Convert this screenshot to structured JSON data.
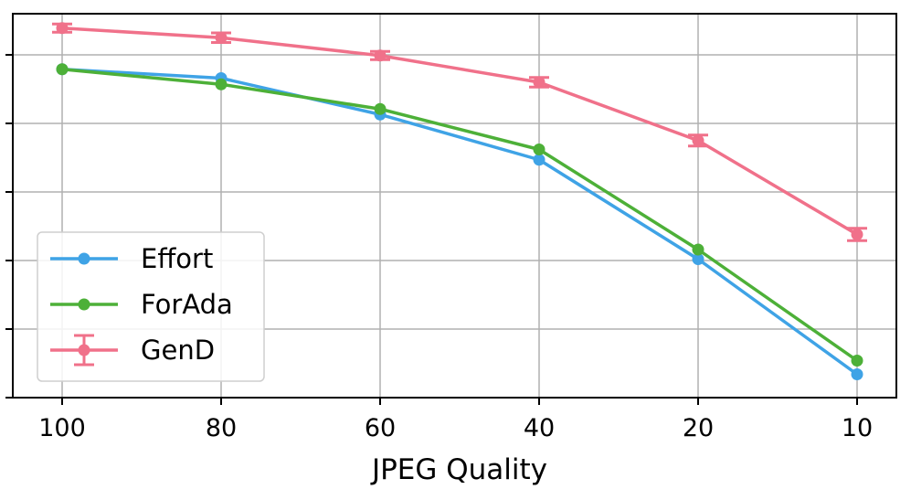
{
  "chart_data": {
    "type": "line",
    "title": "",
    "xlabel": "JPEG Quality",
    "ylabel": "",
    "categories": [
      "100",
      "80",
      "60",
      "40",
      "20",
      "10"
    ],
    "ylim": [
      0.5,
      1.06
    ],
    "yticks": [
      0.5,
      0.6,
      0.7,
      0.8,
      0.9,
      1.0
    ],
    "show_ytick_labels": false,
    "grid": true,
    "legend_position": "lower-left",
    "series": [
      {
        "name": "Effort",
        "color": "#3fa3e6",
        "marker": "circle",
        "errorbars": false,
        "values": [
          0.979,
          0.966,
          0.913,
          0.847,
          0.702,
          0.534
        ]
      },
      {
        "name": "ForAda",
        "color": "#4db038",
        "marker": "circle",
        "errorbars": false,
        "values": [
          0.979,
          0.957,
          0.921,
          0.862,
          0.716,
          0.554
        ]
      },
      {
        "name": "GenD",
        "color": "#f0718a",
        "marker": "circle",
        "errorbars": true,
        "values": [
          1.039,
          1.025,
          0.999,
          0.96,
          0.875,
          0.738
        ],
        "errors": [
          0.006,
          0.007,
          0.006,
          0.007,
          0.008,
          0.009
        ]
      }
    ]
  }
}
